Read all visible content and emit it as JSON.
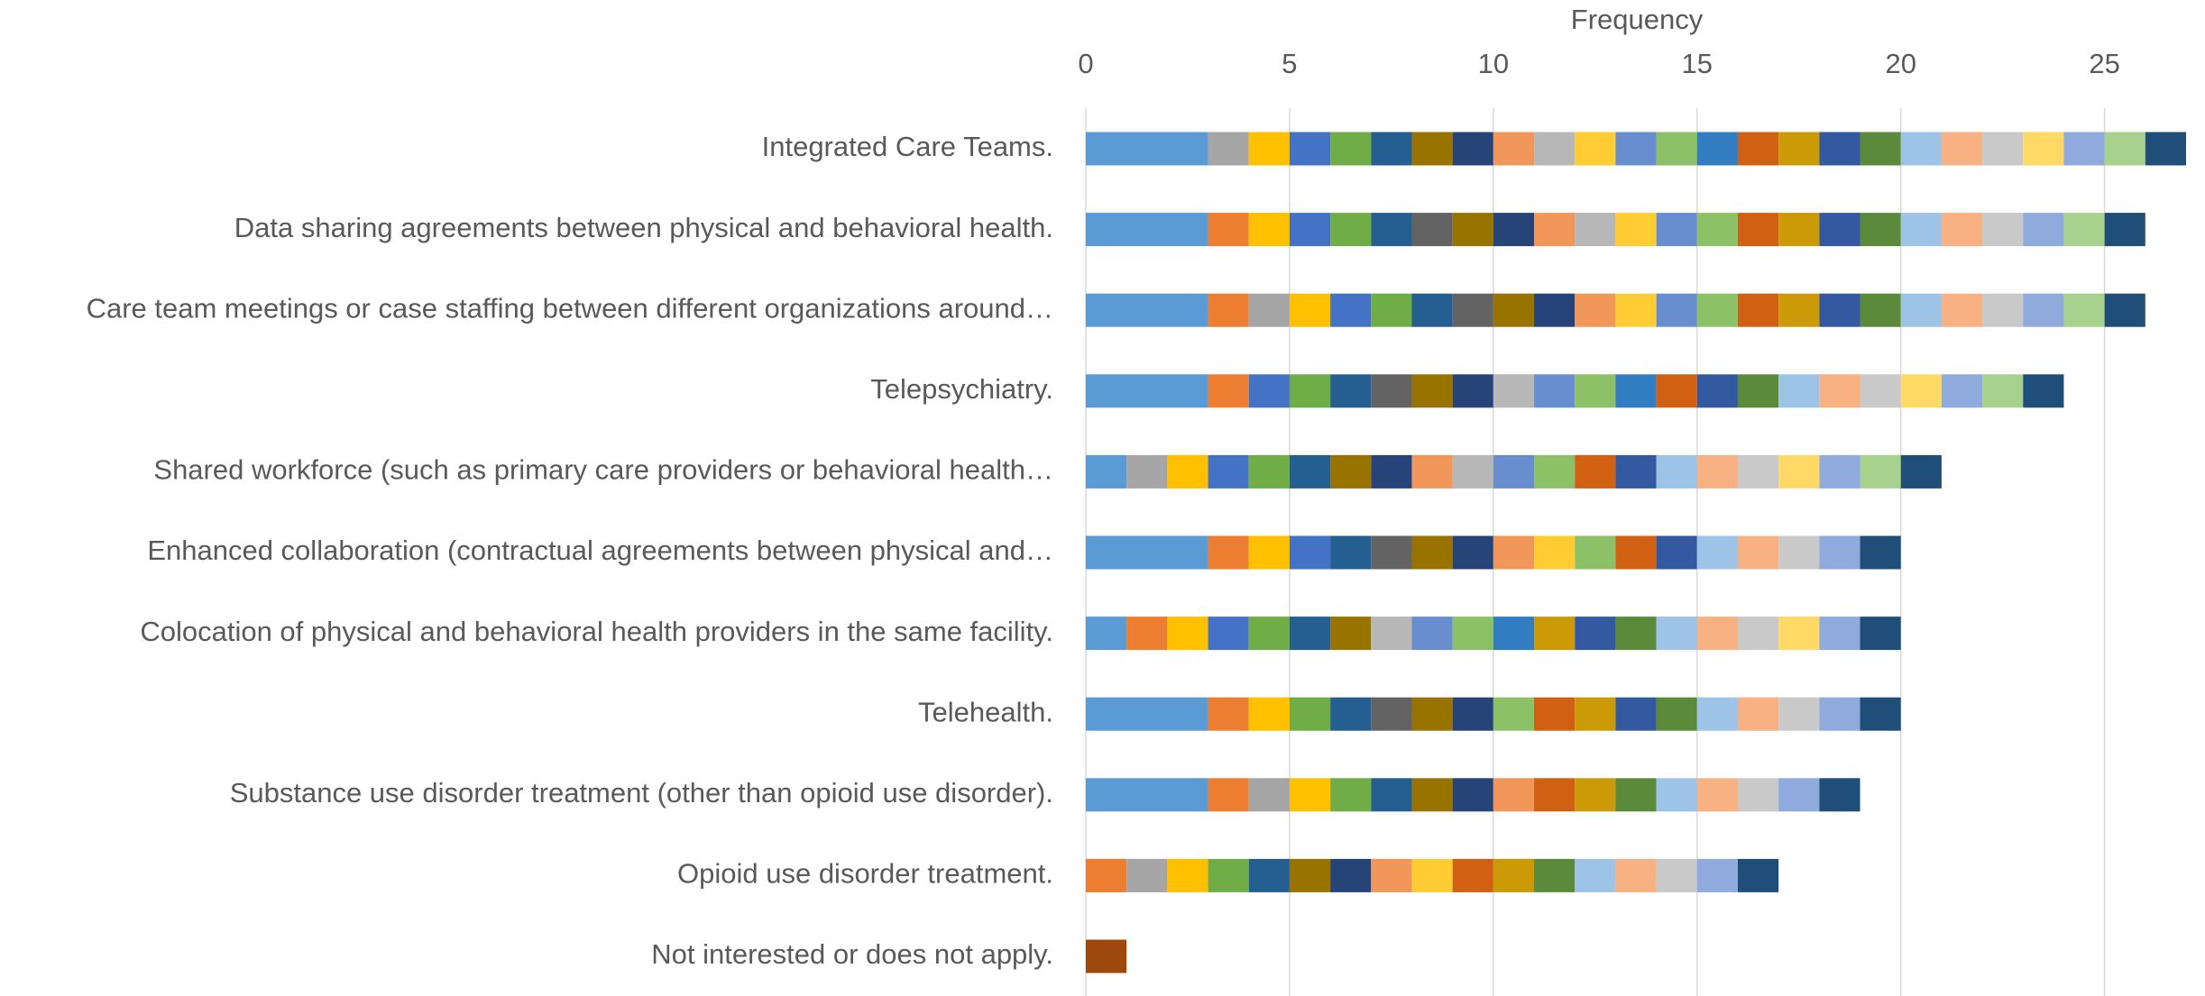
{
  "chart_data": {
    "type": "stacked-bar-horizontal",
    "x_label": "Frequency",
    "xlim": [
      0,
      27
    ],
    "xticks": [
      0,
      5,
      10,
      15,
      20,
      25
    ],
    "grid": true,
    "categories": [
      "Integrated Care Teams.",
      "Data sharing agreements between physical and behavioral health.",
      "Care team meetings or case staffing between different organizations around…",
      "Telepsychiatry.",
      "Shared workforce (such as primary care providers or behavioral health…",
      "Enhanced collaboration (contractual agreements between physical and…",
      "Colocation of physical and behavioral health providers in the same facility.",
      "Telehealth.",
      "Substance use disorder treatment (other than opioid use disorder).",
      "Opioid use disorder treatment.",
      "Not interested or does not apply."
    ],
    "values": [
      [
        3,
        1,
        1,
        1,
        1,
        1,
        1,
        1,
        1,
        1,
        1,
        1,
        1,
        1,
        1,
        1,
        1,
        1,
        1,
        1,
        1,
        1,
        1,
        1,
        1
      ],
      [
        3,
        1,
        1,
        1,
        1,
        1,
        1,
        1,
        1,
        1,
        1,
        1,
        1,
        1,
        1,
        1,
        1,
        1,
        1,
        1,
        1,
        1,
        1,
        1
      ],
      [
        3,
        1,
        1,
        1,
        1,
        1,
        1,
        1,
        1,
        1,
        1,
        1,
        1,
        1,
        1,
        1,
        1,
        1,
        1,
        1,
        1,
        1,
        1,
        1
      ],
      [
        3,
        1,
        1,
        1,
        1,
        1,
        1,
        1,
        1,
        1,
        1,
        1,
        1,
        1,
        1,
        1,
        1,
        1,
        1,
        1,
        1,
        1
      ],
      [
        1,
        1,
        1,
        1,
        1,
        1,
        1,
        1,
        1,
        1,
        1,
        1,
        1,
        1,
        1,
        1,
        1,
        1,
        1,
        1,
        1
      ],
      [
        3,
        1,
        1,
        1,
        1,
        1,
        1,
        1,
        1,
        1,
        1,
        1,
        1,
        1,
        1,
        1,
        1,
        1
      ],
      [
        1,
        1,
        1,
        1,
        1,
        1,
        1,
        1,
        1,
        1,
        1,
        1,
        1,
        1,
        1,
        1,
        1,
        1,
        1,
        1
      ],
      [
        3,
        1,
        1,
        1,
        1,
        1,
        1,
        1,
        1,
        1,
        1,
        1,
        1,
        1,
        1,
        1,
        1,
        1
      ],
      [
        3,
        1,
        1,
        1,
        1,
        1,
        1,
        1,
        1,
        1,
        1,
        1,
        1,
        1,
        1,
        1,
        1
      ],
      [
        1,
        1,
        1,
        1,
        1,
        1,
        1,
        1,
        1,
        1,
        1,
        1,
        1,
        1,
        1,
        1,
        1
      ],
      [
        1
      ]
    ],
    "colors": [
      [
        "#5b9bd5",
        "#a5a5a5",
        "#ffc000",
        "#4472c4",
        "#70ad47",
        "#255e91",
        "#997300",
        "#264478",
        "#f1975a",
        "#b7b7b7",
        "#ffcd33",
        "#698ed0",
        "#8cc168",
        "#327dc2",
        "#d26012",
        "#cc9a06",
        "#335aa1",
        "#5a8a3a",
        "#9dc3e6",
        "#f8b183",
        "#c9c9c9",
        "#ffd966",
        "#8faadc",
        "#a9d18e",
        "#1f4e79"
      ],
      [
        "#5b9bd5",
        "#ed7d31",
        "#ffc000",
        "#4472c4",
        "#70ad47",
        "#255e91",
        "#636363",
        "#997300",
        "#264478",
        "#f1975a",
        "#b7b7b7",
        "#ffcd33",
        "#698ed0",
        "#8cc168",
        "#d26012",
        "#cc9a06",
        "#335aa1",
        "#5a8a3a",
        "#9dc3e6",
        "#f8b183",
        "#c9c9c9",
        "#8faadc",
        "#a9d18e",
        "#1f4e79"
      ],
      [
        "#5b9bd5",
        "#ed7d31",
        "#a5a5a5",
        "#ffc000",
        "#4472c4",
        "#70ad47",
        "#255e91",
        "#636363",
        "#997300",
        "#264478",
        "#f1975a",
        "#ffcd33",
        "#698ed0",
        "#8cc168",
        "#d26012",
        "#cc9a06",
        "#335aa1",
        "#5a8a3a",
        "#9dc3e6",
        "#f8b183",
        "#c9c9c9",
        "#8faadc",
        "#a9d18e",
        "#1f4e79"
      ],
      [
        "#5b9bd5",
        "#ed7d31",
        "#4472c4",
        "#70ad47",
        "#255e91",
        "#636363",
        "#997300",
        "#264478",
        "#b7b7b7",
        "#698ed0",
        "#8cc168",
        "#327dc2",
        "#d26012",
        "#335aa1",
        "#5a8a3a",
        "#9dc3e6",
        "#f8b183",
        "#c9c9c9",
        "#ffd966",
        "#8faadc",
        "#a9d18e",
        "#1f4e79"
      ],
      [
        "#5b9bd5",
        "#a5a5a5",
        "#ffc000",
        "#4472c4",
        "#70ad47",
        "#255e91",
        "#997300",
        "#264478",
        "#f1975a",
        "#b7b7b7",
        "#698ed0",
        "#8cc168",
        "#d26012",
        "#335aa1",
        "#9dc3e6",
        "#f8b183",
        "#c9c9c9",
        "#ffd966",
        "#8faadc",
        "#a9d18e",
        "#1f4e79"
      ],
      [
        "#5b9bd5",
        "#ed7d31",
        "#ffc000",
        "#4472c4",
        "#255e91",
        "#636363",
        "#997300",
        "#264478",
        "#f1975a",
        "#ffcd33",
        "#8cc168",
        "#d26012",
        "#335aa1",
        "#9dc3e6",
        "#f8b183",
        "#c9c9c9",
        "#8faadc",
        "#1f4e79"
      ],
      [
        "#5b9bd5",
        "#ed7d31",
        "#ffc000",
        "#4472c4",
        "#70ad47",
        "#255e91",
        "#997300",
        "#b7b7b7",
        "#698ed0",
        "#8cc168",
        "#327dc2",
        "#cc9a06",
        "#335aa1",
        "#5a8a3a",
        "#9dc3e6",
        "#f8b183",
        "#c9c9c9",
        "#ffd966",
        "#8faadc",
        "#1f4e79"
      ],
      [
        "#5b9bd5",
        "#ed7d31",
        "#ffc000",
        "#70ad47",
        "#255e91",
        "#636363",
        "#997300",
        "#264478",
        "#8cc168",
        "#d26012",
        "#cc9a06",
        "#335aa1",
        "#5a8a3a",
        "#9dc3e6",
        "#f8b183",
        "#c9c9c9",
        "#8faadc",
        "#1f4e79"
      ],
      [
        "#5b9bd5",
        "#ed7d31",
        "#a5a5a5",
        "#ffc000",
        "#70ad47",
        "#255e91",
        "#997300",
        "#264478",
        "#f1975a",
        "#d26012",
        "#cc9a06",
        "#5a8a3a",
        "#9dc3e6",
        "#f8b183",
        "#c9c9c9",
        "#8faadc",
        "#1f4e79"
      ],
      [
        "#ed7d31",
        "#a5a5a5",
        "#ffc000",
        "#70ad47",
        "#255e91",
        "#997300",
        "#264478",
        "#f1975a",
        "#ffcd33",
        "#d26012",
        "#cc9a06",
        "#5a8a3a",
        "#9dc3e6",
        "#f8b183",
        "#c9c9c9",
        "#8faadc",
        "#1f4e79"
      ],
      [
        "#9e480e"
      ]
    ]
  }
}
